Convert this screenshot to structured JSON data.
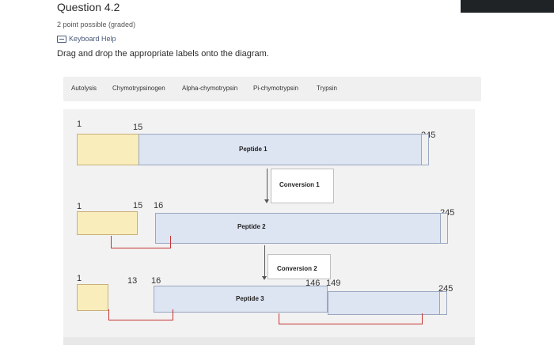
{
  "question": {
    "title": "Question 4.2",
    "points": "2 point possible (graded)",
    "keyboard_help": "Keyboard Help",
    "instruction": "Drag and drop the appropriate labels onto the diagram."
  },
  "labels": [
    "Autolysis",
    "Chymotrypsinogen",
    "Alpha-chymotrypsin",
    "Pi-chymotrypsin",
    "Trypsin"
  ],
  "diagram": {
    "row1": {
      "start": "1",
      "cut": "15",
      "end": "245",
      "peptide": "Peptide 1"
    },
    "conversion1": "Conversion 1",
    "row2": {
      "start": "1",
      "cut_a": "15",
      "cut_b": "16",
      "end": "245",
      "peptide": "Peptide 2"
    },
    "conversion2": "Conversion 2",
    "row3": {
      "start": "1",
      "cut_a": "13",
      "cut_b": "16",
      "cut_c": "146",
      "cut_d": "149",
      "end": "245",
      "peptide": "Peptide 3"
    }
  }
}
